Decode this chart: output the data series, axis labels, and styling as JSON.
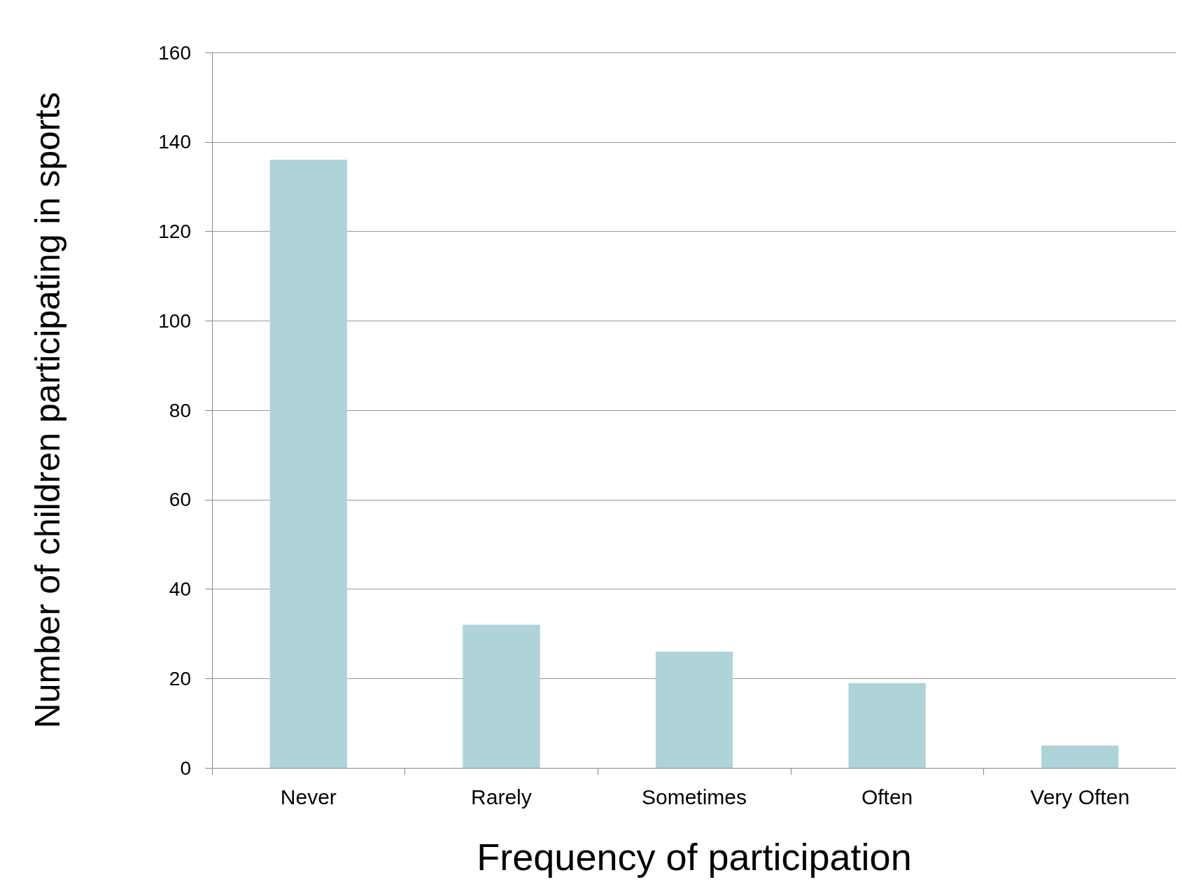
{
  "chart_data": {
    "type": "bar",
    "xlabel": "Frequency of participation",
    "ylabel": "Number of children participating in sports",
    "categories": [
      "Never",
      "Rarely",
      "Sometimes",
      "Often",
      "Very Often"
    ],
    "values": [
      136,
      32,
      26,
      19,
      5
    ],
    "color": "#aed3d8",
    "ylim": [
      0,
      160
    ],
    "yticks": [
      0,
      20,
      40,
      60,
      80,
      100,
      120,
      140,
      160
    ],
    "grid": "y"
  }
}
